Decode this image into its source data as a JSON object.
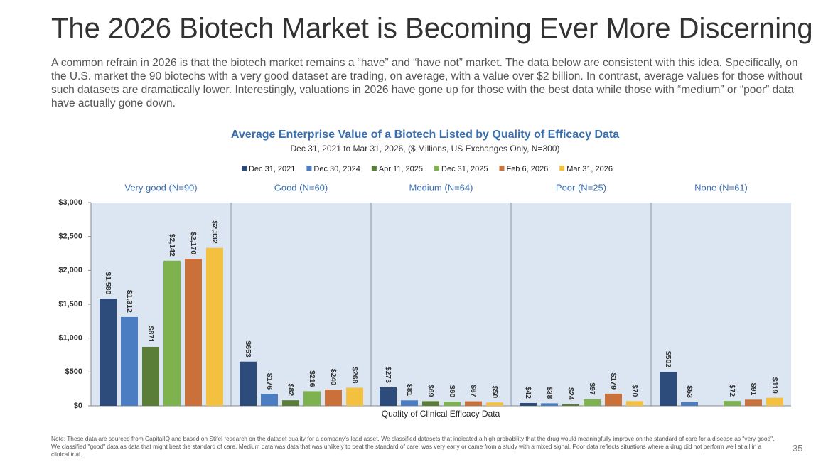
{
  "title": "The 2026 Biotech Market is Becoming Ever More Discerning",
  "body": "A common refrain in 2026 is that the biotech market remains a “have” and “have not” market. The data below are consistent with this idea. Specifically, on the U.S. market the 90 biotechs with a very good dataset are trading, on average, with a value over $2 billion. In contrast, average values for those without such datasets are dramatically lower. Interestingly, valuations in 2026 have gone up for those with the best data while those with “medium” or “poor” data have actually gone down.",
  "chart_data": {
    "type": "bar",
    "title": "Average Enterprise Value of a Biotech Listed by Quality of Efficacy Data",
    "subtitle": "Dec 31, 2021 to Mar 31, 2026, ($ Millions, US Exchanges Only, N=300)",
    "x_label": "Quality of Clinical Efficacy Data",
    "categories": [
      "Very good (N=90)",
      "Good (N=60)",
      "Medium (N=64)",
      "Poor (N=25)",
      "None (N=61)"
    ],
    "series": [
      {
        "name": "Dec 31, 2021",
        "color": "#2d4c7c",
        "values": [
          1580,
          653,
          273,
          42,
          502
        ],
        "value_labels": [
          "$1,580",
          "$653",
          "$273",
          "$42",
          "$502"
        ]
      },
      {
        "name": "Dec 30, 2024",
        "color": "#4a7dc2",
        "values": [
          1312,
          176,
          81,
          38,
          53
        ],
        "value_labels": [
          "$1,312",
          "$176",
          "$81",
          "$38",
          "$53"
        ]
      },
      {
        "name": "Apr 11, 2025",
        "color": "#5a7d38",
        "values": [
          871,
          82,
          69,
          24,
          null
        ],
        "value_labels": [
          "$871",
          "$82",
          "$69",
          "$24",
          null
        ]
      },
      {
        "name": "Dec 31, 2025",
        "color": "#7db24f",
        "values": [
          2142,
          216,
          60,
          97,
          72
        ],
        "value_labels": [
          "$2,142",
          "$216",
          "$60",
          "$97",
          "$72"
        ]
      },
      {
        "name": "Feb 6, 2026",
        "color": "#c9703b",
        "values": [
          2170,
          240,
          67,
          179,
          91
        ],
        "value_labels": [
          "$2,170",
          "$240",
          "$67",
          "$179",
          "$91"
        ]
      },
      {
        "name": "Mar 31, 2026",
        "color": "#f3c13f",
        "values": [
          2332,
          268,
          50,
          70,
          119
        ],
        "value_labels": [
          "$2,332",
          "$268",
          "$50",
          "$70",
          "$119"
        ]
      }
    ],
    "ylim": [
      0,
      3000
    ],
    "yticks": [
      {
        "value": 0,
        "label": "$0"
      },
      {
        "value": 500,
        "label": "$500"
      },
      {
        "value": 1000,
        "label": "$1,000"
      },
      {
        "value": 1500,
        "label": "$1,500"
      },
      {
        "value": 2000,
        "label": "$2,000"
      },
      {
        "value": 2500,
        "label": "$2,500"
      },
      {
        "value": 3000,
        "label": "$3,000"
      }
    ],
    "grid": false
  },
  "note": "Note: These data are sourced from CapitalIQ and based on Stifel research on the dataset quality for a company's lead asset. We classified datasets that indicated a high probability that the drug would meaningfully improve on the standard of care for a disease as \"very good\". We classified \"good\" data as data that might beat the standard of care. Medium data was data that was unlikely to beat the standard of care, was very early or came from a study with a mixed signal. Poor data reflects situations where a drug did not perform well at all in a clinical trial.",
  "page_number": "35"
}
